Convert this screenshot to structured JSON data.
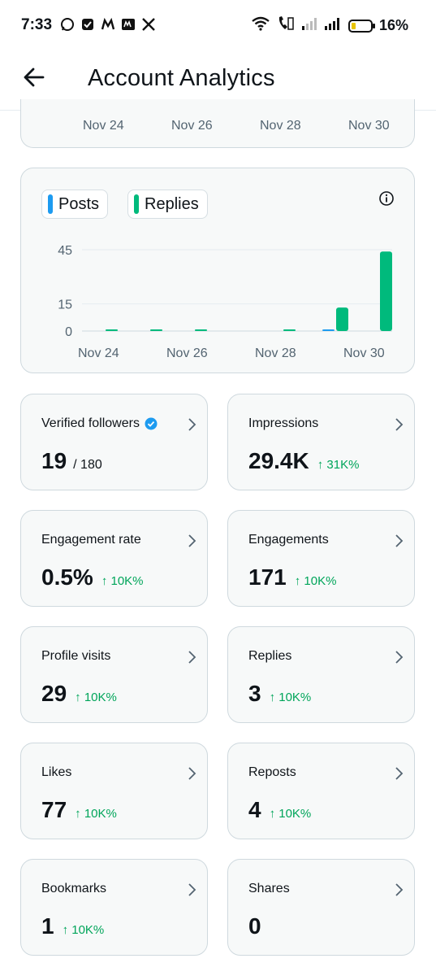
{
  "status_bar": {
    "time": "7:33",
    "battery_pct": "16%"
  },
  "header": {
    "title": "Account Analytics"
  },
  "top_axis": {
    "ticks": [
      "Nov 24",
      "Nov 26",
      "Nov 28",
      "Nov 30"
    ]
  },
  "legend": {
    "posts": "Posts",
    "replies": "Replies"
  },
  "colors": {
    "posts": "#1d9bf0",
    "replies": "#00ba7c",
    "delta": "#00a55a"
  },
  "chart_data": {
    "type": "bar",
    "x": [
      "Nov 24",
      "Nov 25",
      "Nov 26",
      "Nov 27",
      "Nov 28",
      "Nov 29",
      "Nov 30"
    ],
    "series": [
      {
        "name": "Posts",
        "values": [
          0,
          0,
          0,
          0,
          0,
          0.5,
          0
        ]
      },
      {
        "name": "Replies",
        "values": [
          0.5,
          0.5,
          0.5,
          0,
          0.5,
          13,
          44
        ]
      }
    ],
    "yticks": [
      0,
      15,
      45
    ],
    "xticks": [
      "Nov 24",
      "Nov 26",
      "Nov 28",
      "Nov 30"
    ],
    "ylim": [
      0,
      47
    ]
  },
  "stats": [
    {
      "label": "Verified followers",
      "value": "19",
      "sub": "/ 180",
      "delta": ""
    },
    {
      "label": "Impressions",
      "value": "29.4K",
      "sub": "",
      "delta": "↑ 31K%"
    },
    {
      "label": "Engagement rate",
      "value": "0.5%",
      "sub": "",
      "delta": "↑ 10K%"
    },
    {
      "label": "Engagements",
      "value": "171",
      "sub": "",
      "delta": "↑ 10K%"
    },
    {
      "label": "Profile visits",
      "value": "29",
      "sub": "",
      "delta": "↑ 10K%"
    },
    {
      "label": "Replies",
      "value": "3",
      "sub": "",
      "delta": "↑ 10K%"
    },
    {
      "label": "Likes",
      "value": "77",
      "sub": "",
      "delta": "↑ 10K%"
    },
    {
      "label": "Reposts",
      "value": "4",
      "sub": "",
      "delta": "↑ 10K%"
    },
    {
      "label": "Bookmarks",
      "value": "1",
      "sub": "",
      "delta": "↑ 10K%"
    },
    {
      "label": "Shares",
      "value": "0",
      "sub": "",
      "delta": ""
    }
  ]
}
